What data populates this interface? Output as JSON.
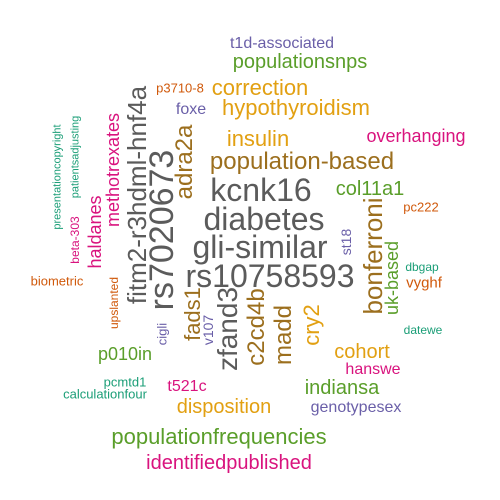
{
  "words": [
    {
      "text": "t1d-associated",
      "color": "#6a5fa8"
    },
    {
      "text": "populationsnps",
      "color": "#5a9e2a"
    },
    {
      "text": "p3710-8",
      "color": "#d0590b"
    },
    {
      "text": "correction",
      "color": "#e2a012"
    },
    {
      "text": "hypothyroidism",
      "color": "#e2a012"
    },
    {
      "text": "foxe",
      "color": "#6a5fa8"
    },
    {
      "text": "insulin",
      "color": "#e2a012"
    },
    {
      "text": "overhanging",
      "color": "#d9137e"
    },
    {
      "text": "population-based",
      "color": "#9c6f1e"
    },
    {
      "text": "kcnk16",
      "color": "#5b5b5b"
    },
    {
      "text": "col11a1",
      "color": "#5a9e2a"
    },
    {
      "text": "diabetes",
      "color": "#5b5b5b"
    },
    {
      "text": "pc222",
      "color": "#d0590b"
    },
    {
      "text": "gli-similar",
      "color": "#5b5b5b"
    },
    {
      "text": "rs10758593",
      "color": "#5b5b5b"
    },
    {
      "text": "dbgap",
      "color": "#1b9e77"
    },
    {
      "text": "vyghf",
      "color": "#d0590b"
    },
    {
      "text": "biometric",
      "color": "#d0590b"
    },
    {
      "text": "datewe",
      "color": "#1b9e77"
    },
    {
      "text": "p010in",
      "color": "#5a9e2a"
    },
    {
      "text": "cohort",
      "color": "#e2a012"
    },
    {
      "text": "hanswe",
      "color": "#d9137e"
    },
    {
      "text": "pcmtd1",
      "color": "#1b9e77"
    },
    {
      "text": "t521c",
      "color": "#d9137e"
    },
    {
      "text": "indiansa",
      "color": "#5a9e2a"
    },
    {
      "text": "calculationfour",
      "color": "#1b9e77"
    },
    {
      "text": "disposition",
      "color": "#e2a012"
    },
    {
      "text": "genotypesex",
      "color": "#6a5fa8"
    },
    {
      "text": "populationfrequencies",
      "color": "#5a9e2a"
    },
    {
      "text": "identifiedpublished",
      "color": "#d9137e"
    },
    {
      "text": "presentationcopyright",
      "color": "#1b9e77"
    },
    {
      "text": "patientsadjusting",
      "color": "#1b9e77"
    },
    {
      "text": "beta-303",
      "color": "#d9137e"
    },
    {
      "text": "haldanes",
      "color": "#d9137e"
    },
    {
      "text": "methotrexates",
      "color": "#d9137e"
    },
    {
      "text": "fitm2-r3hdml-hnf4a",
      "color": "#5b5b5b"
    },
    {
      "text": "rs7020673",
      "color": "#5b5b5b"
    },
    {
      "text": "adra2a",
      "color": "#9c6f1e"
    },
    {
      "text": "zfand3",
      "color": "#5b5b5b"
    },
    {
      "text": "c2cd4b",
      "color": "#9c6f1e"
    },
    {
      "text": "madd",
      "color": "#9c6f1e"
    },
    {
      "text": "cry2",
      "color": "#e2a012"
    },
    {
      "text": "bonferroni",
      "color": "#9c6f1e"
    },
    {
      "text": "uk-based",
      "color": "#5a9e2a"
    },
    {
      "text": "st18",
      "color": "#6a5fa8"
    },
    {
      "text": "fads1",
      "color": "#9c6f1e"
    },
    {
      "text": "v107",
      "color": "#6a5fa8"
    },
    {
      "text": "cigli",
      "color": "#6a5fa8"
    },
    {
      "text": "upslanted",
      "color": "#d0590b"
    }
  ]
}
